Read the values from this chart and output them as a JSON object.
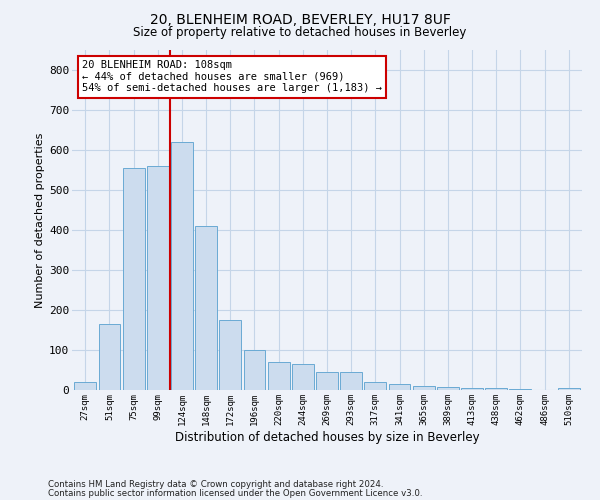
{
  "title1": "20, BLENHEIM ROAD, BEVERLEY, HU17 8UF",
  "title2": "Size of property relative to detached houses in Beverley",
  "xlabel": "Distribution of detached houses by size in Beverley",
  "ylabel": "Number of detached properties",
  "categories": [
    "27sqm",
    "51sqm",
    "75sqm",
    "99sqm",
    "124sqm",
    "148sqm",
    "172sqm",
    "196sqm",
    "220sqm",
    "244sqm",
    "269sqm",
    "293sqm",
    "317sqm",
    "341sqm",
    "365sqm",
    "389sqm",
    "413sqm",
    "438sqm",
    "462sqm",
    "486sqm",
    "510sqm"
  ],
  "values": [
    20,
    165,
    555,
    560,
    620,
    410,
    175,
    100,
    70,
    65,
    45,
    45,
    20,
    15,
    10,
    8,
    5,
    4,
    2,
    1,
    5
  ],
  "bar_color": "#ccdcee",
  "bar_edge_color": "#6aaad4",
  "grid_color": "#c5d5e8",
  "annotation_box_text": "20 BLENHEIM ROAD: 108sqm\n← 44% of detached houses are smaller (969)\n54% of semi-detached houses are larger (1,183) →",
  "annotation_box_color": "#ffffff",
  "annotation_box_edge_color": "#cc0000",
  "annotation_line_color": "#cc0000",
  "ylim": [
    0,
    850
  ],
  "yticks": [
    0,
    100,
    200,
    300,
    400,
    500,
    600,
    700,
    800
  ],
  "footer1": "Contains HM Land Registry data © Crown copyright and database right 2024.",
  "footer2": "Contains public sector information licensed under the Open Government Licence v3.0.",
  "background_color": "#eef2f9"
}
